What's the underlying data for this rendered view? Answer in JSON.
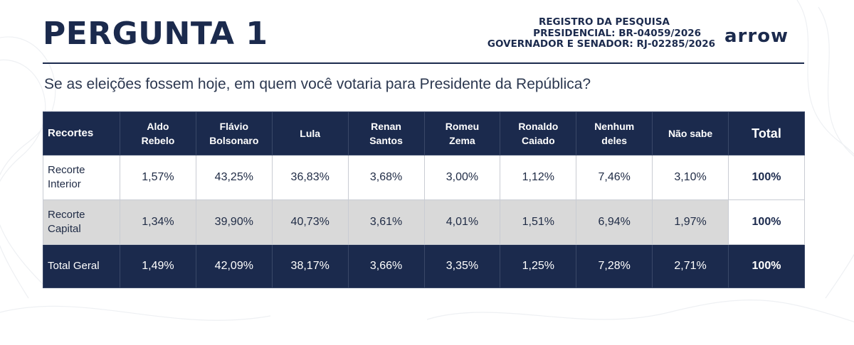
{
  "header": {
    "title": "PERGUNTA 1",
    "registro": [
      "REGISTRO DA PESQUISA",
      "PRESIDENCIAL: BR-04059/2026",
      "GOVERNADOR E SENADOR: RJ-02285/2026"
    ],
    "logo": "arrow"
  },
  "question": "Se as eleições fossem hoje, em quem você votaria para Presidente da República?",
  "chart_data": {
    "type": "table",
    "corner_label": "Recortes",
    "columns": [
      [
        "Aldo",
        "Rebelo"
      ],
      [
        "Flávio",
        "Bolsonaro"
      ],
      [
        "Lula",
        ""
      ],
      [
        "Renan",
        "Santos"
      ],
      [
        "Romeu",
        "Zema"
      ],
      [
        "Ronaldo",
        "Caiado"
      ],
      [
        "Nenhum",
        "deles"
      ],
      [
        "Não sabe",
        ""
      ]
    ],
    "total_label": "Total",
    "rows": [
      {
        "label": [
          "Recorte",
          "Interior"
        ],
        "values": [
          "1,57%",
          "43,25%",
          "36,83%",
          "3,68%",
          "3,00%",
          "1,12%",
          "7,46%",
          "3,10%"
        ],
        "total": "100%"
      },
      {
        "label": [
          "Recorte",
          "Capital"
        ],
        "values": [
          "1,34%",
          "39,90%",
          "40,73%",
          "3,61%",
          "4,01%",
          "1,51%",
          "6,94%",
          "1,97%"
        ],
        "total": "100%"
      },
      {
        "label": [
          "Total Geral",
          ""
        ],
        "values": [
          "1,49%",
          "42,09%",
          "38,17%",
          "3,66%",
          "3,35%",
          "1,25%",
          "7,28%",
          "2,71%"
        ],
        "total": "100%"
      }
    ]
  },
  "colors": {
    "navy": "#1b2a4d",
    "row_alt": "#d9d9d9"
  }
}
